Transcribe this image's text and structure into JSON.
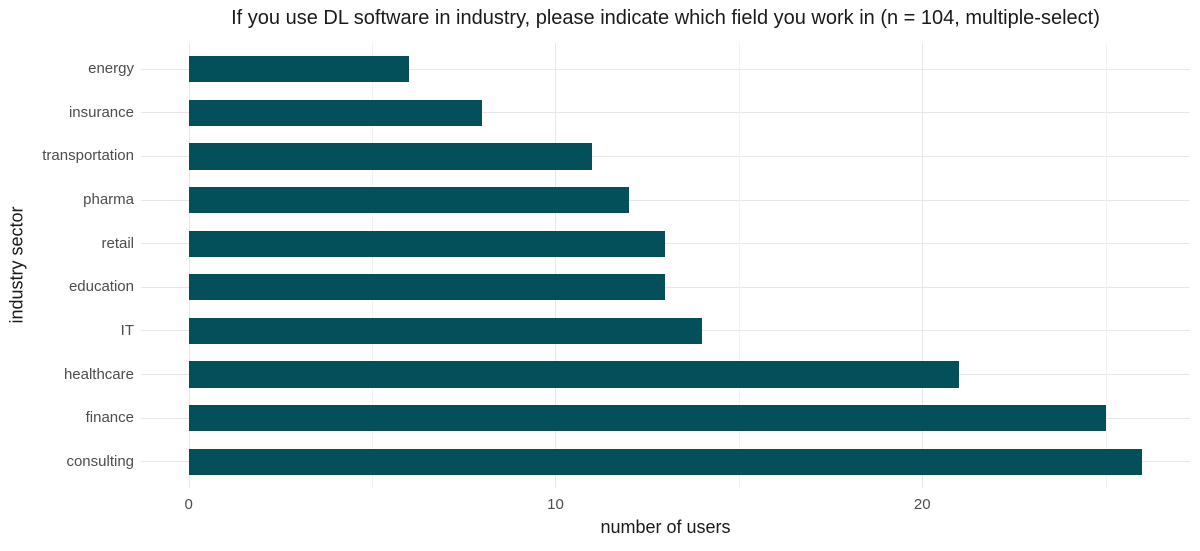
{
  "chart_data": {
    "type": "bar",
    "orientation": "horizontal",
    "title": "If you use DL software in industry, please indicate which field you work in (n = 104, multiple-select)",
    "xlabel": "number of users",
    "ylabel": "industry sector",
    "categories": [
      "energy",
      "insurance",
      "transportation",
      "pharma",
      "retail",
      "education",
      "IT",
      "healthcare",
      "finance",
      "consulting"
    ],
    "values": [
      6,
      8,
      11,
      12,
      13,
      13,
      14,
      21,
      25,
      26
    ],
    "x_major_ticks": [
      0,
      10,
      20
    ],
    "x_minor_ticks": [
      5,
      15,
      25
    ],
    "xlim": [
      0,
      26
    ],
    "x_expand_frac": 0.05,
    "y_band_pad": 0.6,
    "bar_width_frac": 0.6,
    "grid": "major-and-minor",
    "legend": "none",
    "colors": {
      "bar": "#03505b",
      "grid_major": "#e7e7e7",
      "grid_minor": "#f2f2f2",
      "tick_label": "#4d4d4d",
      "text": "#1a1a1a",
      "background": "#ffffff"
    }
  }
}
